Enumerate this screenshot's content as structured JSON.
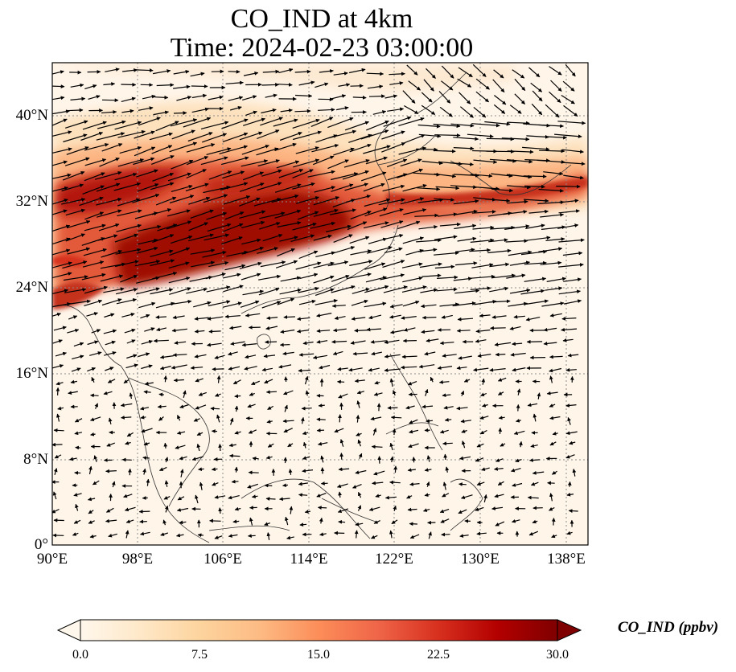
{
  "title_line1": "CO_IND at 4km",
  "title_line2": "Time: 2024-02-23 03:00:00",
  "y_ticks": [
    "40°N",
    "32°N",
    "24°N",
    "16°N",
    "8°N",
    "0°"
  ],
  "x_ticks": [
    "90°E",
    "98°E",
    "106°E",
    "114°E",
    "122°E",
    "130°E",
    "138°E"
  ],
  "colorbar": {
    "label": "CO_IND (ppbv)",
    "ticks": [
      "0.0",
      "7.5",
      "15.0",
      "22.5",
      "30.0"
    ],
    "min": 0,
    "max": 30,
    "extend": "both",
    "colors": [
      "#fff7ec",
      "#fee8c8",
      "#fdd49e",
      "#fdbb84",
      "#fc8d59",
      "#ef6548",
      "#d7301f",
      "#b30000",
      "#7f0000"
    ]
  },
  "map": {
    "extent_lon": [
      90,
      140
    ],
    "extent_lat": [
      0,
      45
    ],
    "gridlines": "dotted",
    "vector_color": "#000000",
    "coastline_color": "#333333"
  }
}
